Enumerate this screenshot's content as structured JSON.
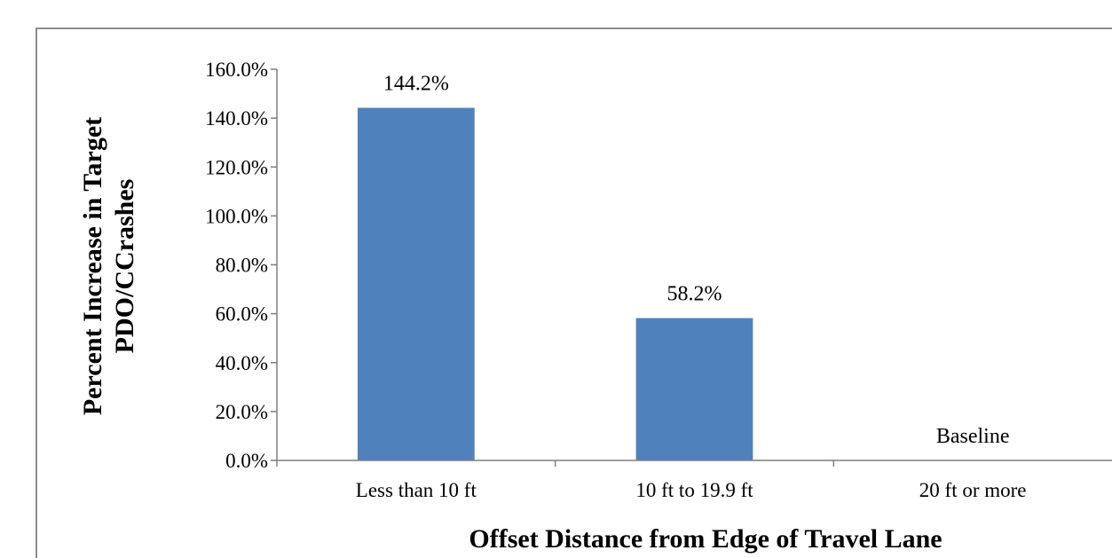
{
  "chart_data": {
    "type": "bar",
    "categories": [
      "Less than 10 ft",
      "10 ft to 19.9 ft",
      "20 ft or more"
    ],
    "values": [
      144.2,
      58.2,
      0
    ],
    "data_labels": [
      "144.2%",
      "58.2%",
      "Baseline"
    ],
    "xlabel": "Offset Distance from Edge of Travel Lane",
    "ylabel_lines": [
      "Percent Increase in Target",
      "PDO/CCrashes"
    ],
    "ylim": [
      0,
      160
    ],
    "yticks": [
      "0.0%",
      "20.0%",
      "40.0%",
      "60.0%",
      "80.0%",
      "100.0%",
      "120.0%",
      "140.0%",
      "160.0%"
    ],
    "bar_color": "#4f81bd",
    "grid": false
  }
}
